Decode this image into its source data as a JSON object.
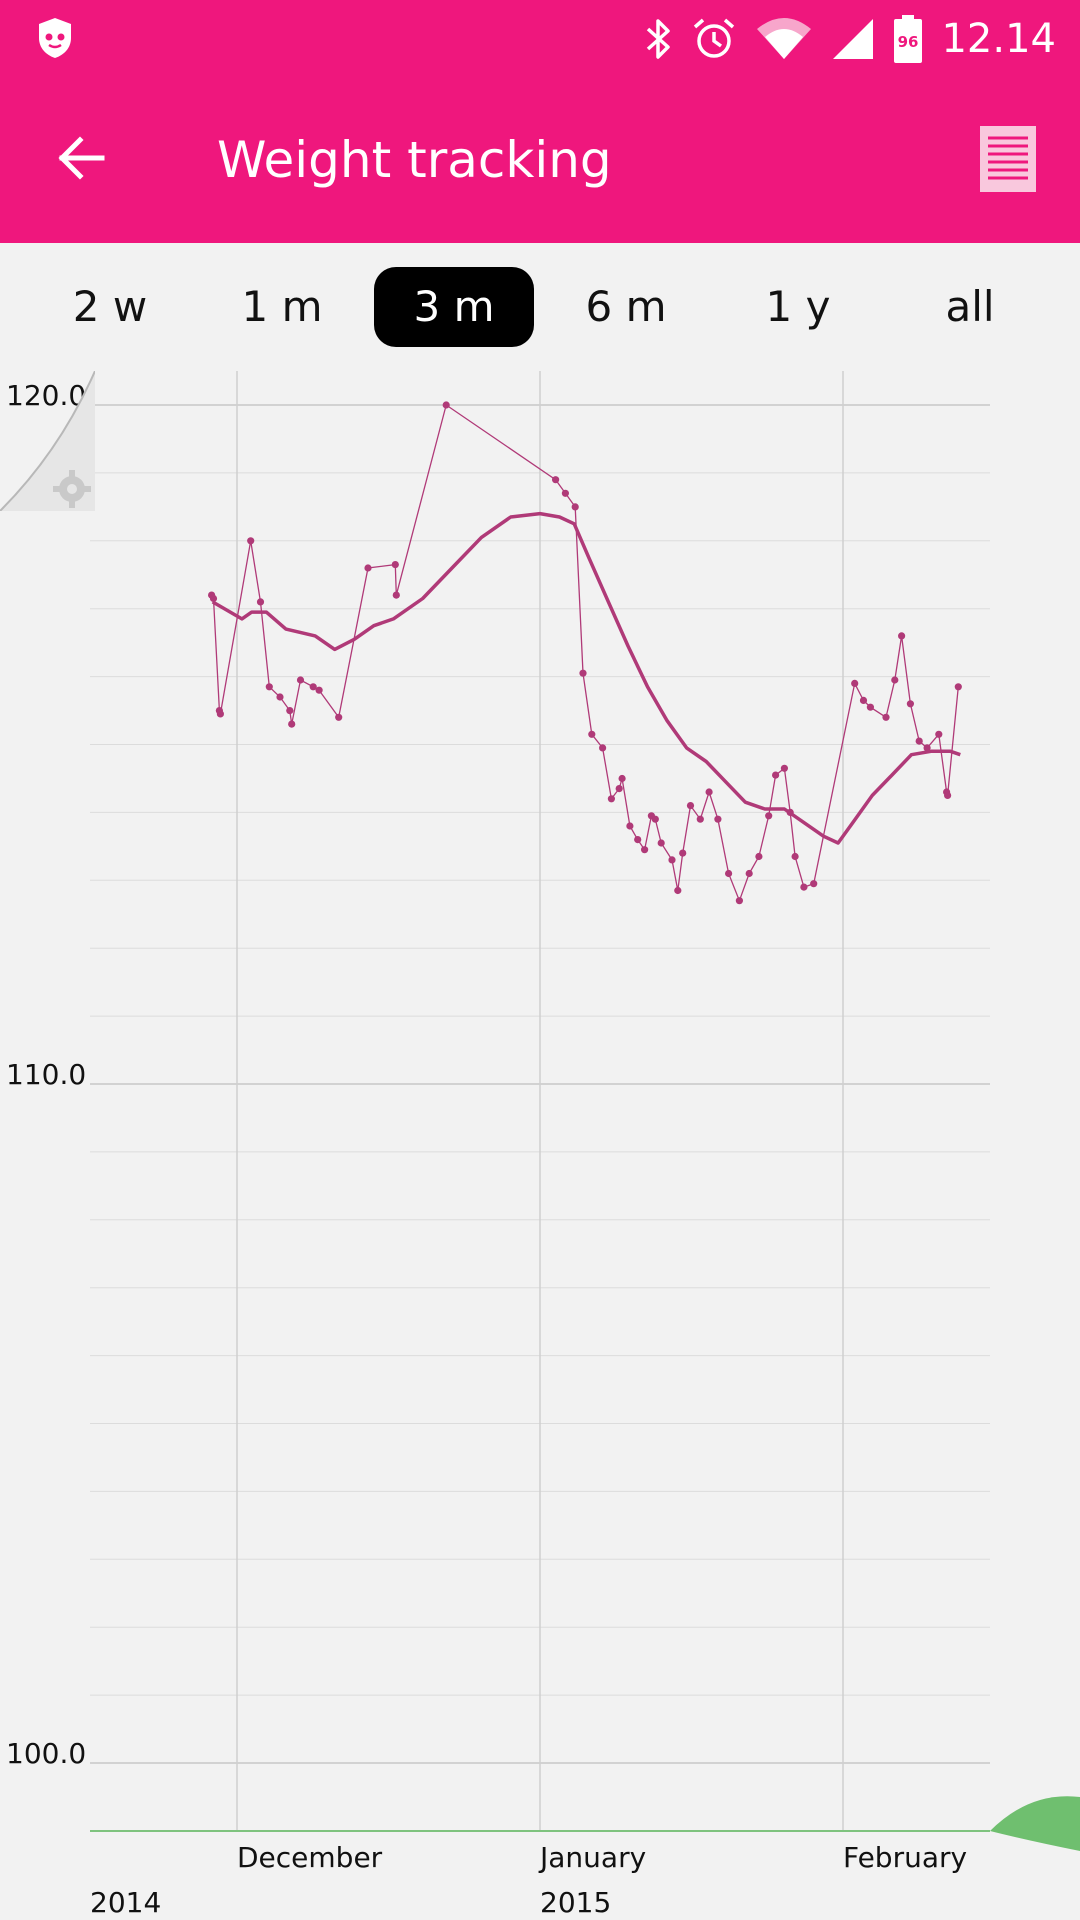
{
  "status_bar": {
    "time": "12.14",
    "battery": "96",
    "icons": [
      "shield-cat-icon",
      "bluetooth-icon",
      "alarm-icon",
      "wifi-icon",
      "signal-icon",
      "battery-icon"
    ]
  },
  "app_bar": {
    "title": "Weight tracking",
    "back_icon": "arrow-left-icon",
    "list_icon": "list-icon"
  },
  "range_tabs": [
    {
      "label": "2 w",
      "selected": false
    },
    {
      "label": "1 m",
      "selected": false
    },
    {
      "label": "3 m",
      "selected": true
    },
    {
      "label": "6 m",
      "selected": false
    },
    {
      "label": "1 y",
      "selected": false
    },
    {
      "label": "all",
      "selected": false
    }
  ],
  "colors": {
    "accent": "#ef177d",
    "series": "#b03a78",
    "grid": "#d0d0d0",
    "baseline": "#7fc37f"
  },
  "chart_data": {
    "type": "line",
    "yticks": [
      "120.0",
      "110.0",
      "100.0"
    ],
    "ylim": [
      99.0,
      120.5
    ],
    "x_day_labels": [
      {
        "day": 0,
        "label": "December",
        "year": "2014"
      },
      {
        "day": 31,
        "label": "January",
        "year": "2015"
      },
      {
        "day": 62,
        "label": "February",
        "year": ""
      }
    ],
    "xlim_days": [
      -15,
      77
    ],
    "grid": true,
    "series": [
      {
        "kind": "measurements",
        "points": [
          [
            -2.6,
            117.2
          ],
          [
            -2.4,
            117.15
          ],
          [
            -1.8,
            115.5
          ],
          [
            -1.7,
            115.45
          ],
          [
            1.4,
            118.0
          ],
          [
            2.4,
            117.1
          ],
          [
            3.3,
            115.85
          ],
          [
            4.4,
            115.7
          ],
          [
            5.4,
            115.5
          ],
          [
            5.6,
            115.3
          ],
          [
            6.5,
            115.95
          ],
          [
            7.8,
            115.85
          ],
          [
            8.4,
            115.8
          ],
          [
            10.4,
            115.4
          ],
          [
            13.4,
            117.6
          ],
          [
            16.2,
            117.65
          ],
          [
            16.3,
            117.2
          ],
          [
            21.4,
            120.0
          ],
          [
            32.6,
            118.9
          ],
          [
            33.6,
            118.7
          ],
          [
            34.6,
            118.5
          ],
          [
            35.4,
            116.05
          ],
          [
            36.3,
            115.15
          ],
          [
            37.4,
            114.95
          ],
          [
            38.3,
            114.2
          ],
          [
            39.1,
            114.35
          ],
          [
            39.4,
            114.5
          ],
          [
            40.2,
            113.8
          ],
          [
            41.0,
            113.6
          ],
          [
            41.7,
            113.45
          ],
          [
            42.4,
            113.95
          ],
          [
            42.8,
            113.9
          ],
          [
            43.4,
            113.55
          ],
          [
            44.5,
            113.3
          ],
          [
            45.1,
            112.85
          ],
          [
            45.6,
            113.4
          ],
          [
            46.4,
            114.1
          ],
          [
            47.4,
            113.9
          ],
          [
            48.3,
            114.3
          ],
          [
            49.2,
            113.9
          ],
          [
            50.3,
            113.1
          ],
          [
            51.4,
            112.7
          ],
          [
            52.4,
            113.1
          ],
          [
            53.4,
            113.35
          ],
          [
            54.4,
            113.95
          ],
          [
            55.1,
            114.55
          ],
          [
            56.0,
            114.65
          ],
          [
            56.6,
            114.0
          ],
          [
            57.1,
            113.35
          ],
          [
            58.0,
            112.9
          ],
          [
            59.0,
            112.95
          ],
          [
            63.2,
            115.9
          ],
          [
            64.1,
            115.65
          ],
          [
            64.8,
            115.55
          ],
          [
            66.4,
            115.4
          ],
          [
            67.3,
            115.95
          ],
          [
            68.0,
            116.6
          ],
          [
            68.9,
            115.6
          ],
          [
            69.8,
            115.05
          ],
          [
            70.6,
            114.95
          ],
          [
            71.8,
            115.15
          ],
          [
            72.6,
            114.3
          ],
          [
            72.7,
            114.25
          ],
          [
            73.8,
            115.85
          ]
        ]
      },
      {
        "kind": "trend",
        "points": [
          [
            -2.5,
            117.1
          ],
          [
            0.5,
            116.85
          ],
          [
            1.5,
            116.95
          ],
          [
            3.0,
            116.95
          ],
          [
            5.0,
            116.7
          ],
          [
            8.0,
            116.6
          ],
          [
            10.0,
            116.4
          ],
          [
            12.0,
            116.55
          ],
          [
            14.0,
            116.75
          ],
          [
            16.0,
            116.85
          ],
          [
            19.0,
            117.15
          ],
          [
            22.0,
            117.6
          ],
          [
            25.0,
            118.05
          ],
          [
            28.0,
            118.35
          ],
          [
            31.0,
            118.4
          ],
          [
            33.0,
            118.35
          ],
          [
            34.5,
            118.25
          ],
          [
            36.0,
            117.75
          ],
          [
            38.0,
            117.1
          ],
          [
            40.0,
            116.45
          ],
          [
            42.0,
            115.85
          ],
          [
            44.0,
            115.35
          ],
          [
            46.0,
            114.95
          ],
          [
            48.0,
            114.75
          ],
          [
            50.0,
            114.45
          ],
          [
            52.0,
            114.15
          ],
          [
            54.0,
            114.05
          ],
          [
            56.0,
            114.05
          ],
          [
            58.0,
            113.85
          ],
          [
            60.0,
            113.65
          ],
          [
            61.5,
            113.55
          ],
          [
            63.0,
            113.85
          ],
          [
            65.0,
            114.25
          ],
          [
            67.0,
            114.55
          ],
          [
            69.0,
            114.85
          ],
          [
            71.0,
            114.9
          ],
          [
            73.0,
            114.9
          ],
          [
            74.0,
            114.85
          ]
        ]
      }
    ]
  }
}
